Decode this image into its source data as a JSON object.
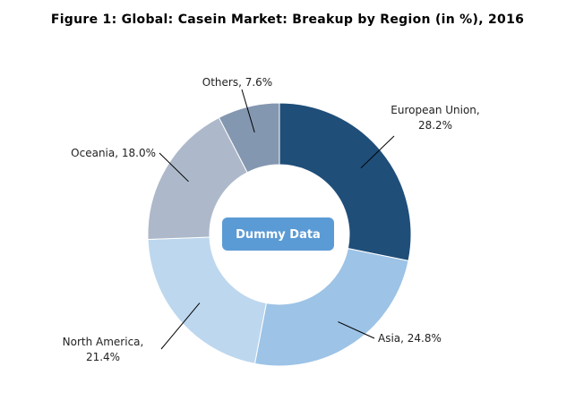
{
  "chart_data": {
    "type": "donut",
    "title": "Figure 1: Global: Casein Market: Breakup by Region (in %), 2016",
    "values": [
      28.2,
      24.8,
      21.4,
      18.0,
      7.6
    ],
    "value_labels": [
      "European Union,\n28.2%",
      "Asia, 24.8%",
      "North America,\n21.4%",
      "Oceania, 18.0%",
      "Others, 7.6%"
    ],
    "colors": [
      "#1f4e79",
      "#9dc3e6",
      "#bdd7ee",
      "#adb9ca",
      "#8497b0"
    ],
    "watermark": "Dummy Data"
  }
}
